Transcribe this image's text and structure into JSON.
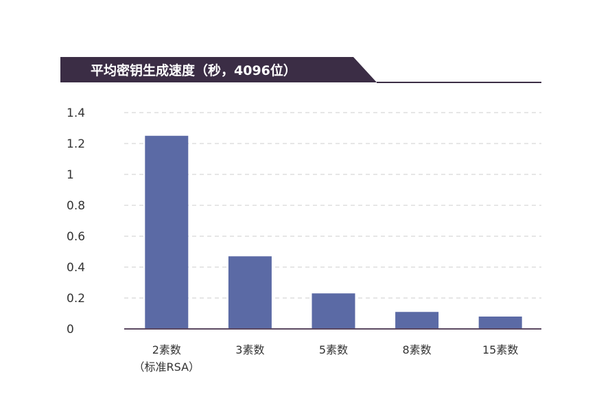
{
  "chart_data": {
    "type": "bar",
    "title": "平均密钥生成速度（秒，4096位）",
    "categories": [
      [
        "2素数",
        "（标准RSA）"
      ],
      [
        "3素数"
      ],
      [
        "5素数"
      ],
      [
        "8素数"
      ],
      [
        "15素数"
      ]
    ],
    "values": [
      1.25,
      0.47,
      0.23,
      0.11,
      0.08
    ],
    "ylim": [
      0,
      1.4
    ],
    "yticks": [
      "0",
      "0.2",
      "0.4",
      "0.6",
      "0.8",
      "1",
      "1.2",
      "1.4"
    ],
    "ytick_values": [
      0,
      0.2,
      0.4,
      0.6,
      0.8,
      1.0,
      1.2,
      1.4
    ],
    "grid": true,
    "bar_color": "#5b6aa5",
    "title_band_color": "#3b2d45",
    "axis_color": "#5b4860",
    "grid_color": "#cccccc"
  }
}
